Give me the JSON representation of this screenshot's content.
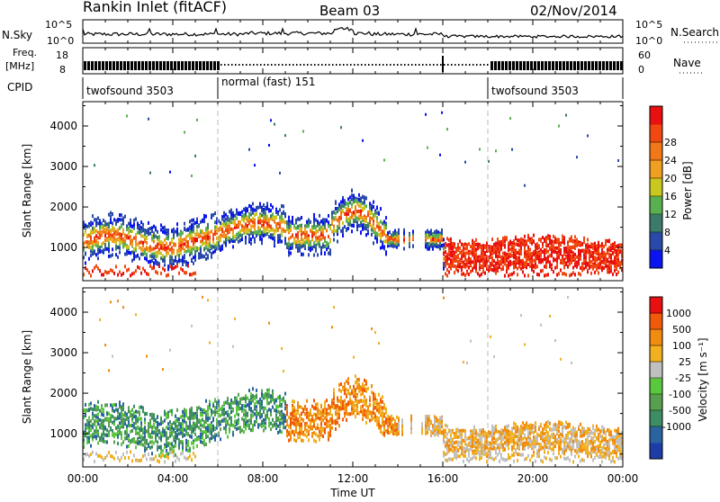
{
  "header": {
    "station": "Rankin Inlet (fitACF)",
    "beam": "Beam 03",
    "date": "02/Nov/2014"
  },
  "top_panels": {
    "nsky_label": "N.Sky",
    "nsky_ticks": [
      "10^5",
      "10^0"
    ],
    "nsearch_label": "N.Search",
    "nsearch_ticks": [
      "10^5",
      "10^0"
    ],
    "freq_label_line1": "Freq.",
    "freq_label_line2": "[MHz]",
    "freq_ticks": [
      "18",
      "8"
    ],
    "nave_label": "Nave",
    "nave_ticks": [
      "60",
      "0"
    ],
    "cpid_label": "CPID",
    "cpid_segments": [
      {
        "label": "twofsound 3503",
        "start_h": 0,
        "end_h": 6
      },
      {
        "label": "normal (fast) 151",
        "start_h": 6,
        "end_h": 18
      },
      {
        "label": "twofsound 3503",
        "start_h": 18,
        "end_h": 24
      }
    ]
  },
  "chart_data": [
    {
      "type": "heatmap",
      "title": "Power",
      "xlabel": "Time UT",
      "ylabel": "Slant Range [km]",
      "colorbar_label": "Power [dB]",
      "xlim": [
        0,
        24
      ],
      "ylim": [
        180,
        4600
      ],
      "y_ticks": [
        "1000",
        "2000",
        "3000",
        "4000"
      ],
      "colorbar_ticks": [
        "4",
        "8",
        "12",
        "16",
        "20",
        "24",
        "28"
      ],
      "colorbar_colors": [
        "#0a14f0",
        "#2a4aaa",
        "#3c7a6a",
        "#58b050",
        "#c8c820",
        "#f0a020",
        "#f07818",
        "#f04810",
        "#e81010"
      ],
      "colorbar_range": [
        0,
        32
      ]
    },
    {
      "type": "heatmap",
      "title": "Velocity",
      "xlabel": "Time UT",
      "ylabel": "Slant Range [km]",
      "colorbar_label": "Velocity [m s⁻¹]",
      "xlim": [
        0,
        24
      ],
      "ylim": [
        180,
        4600
      ],
      "y_ticks": [
        "1000",
        "2000",
        "3000",
        "4000"
      ],
      "colorbar_ticks": [
        "1000",
        "500",
        "100",
        "25",
        "-25",
        "-100",
        "-500",
        "-1000"
      ],
      "colorbar_colors": [
        "#1e3ca8",
        "#2a64a0",
        "#3c8c64",
        "#58a050",
        "#5ac83c",
        "#c0c0c0",
        "#f0b020",
        "#f08c10",
        "#f05a0a",
        "#e81010"
      ]
    }
  ],
  "x_axis": {
    "ticks": [
      "00:00",
      "04:00",
      "08:00",
      "12:00",
      "16:00",
      "20:00",
      "00:00"
    ],
    "tick_hours": [
      0,
      4,
      8,
      12,
      16,
      20,
      24
    ],
    "label": "Time UT"
  }
}
